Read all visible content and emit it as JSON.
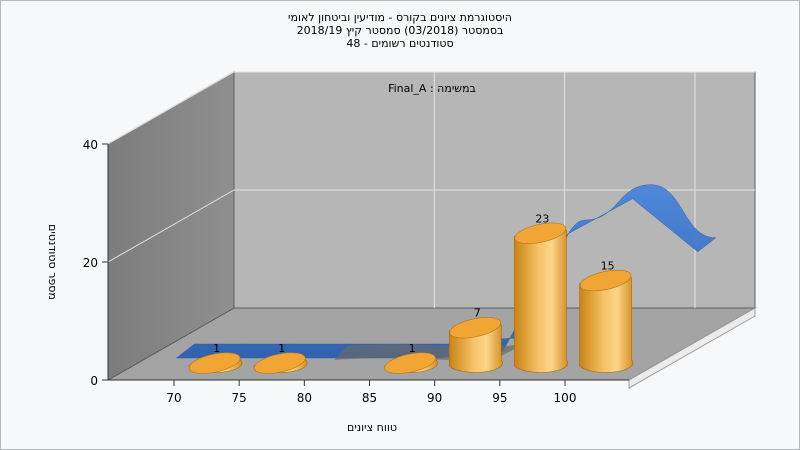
{
  "chart_data": {
    "type": "bar",
    "title": [
      "היסטוגרמת ציונים בקורס - מודיעין וביטחון לאומי",
      "בסמסטר  (03/2018)  סמסטר קיץ 2018/19",
      "סטודנטים רשומים - 48"
    ],
    "annotation": "במשימה : Final_A",
    "xlabel": "טווח ציונים",
    "ylabel": "מספר סטודנטים",
    "x_ticks": [
      "70",
      "75",
      "80",
      "85",
      "90",
      "95",
      "100"
    ],
    "y_ticks": [
      "0",
      "20",
      "40"
    ],
    "ylim": [
      0,
      40
    ],
    "grid": true,
    "series": [
      {
        "kind": "cylinder-bars",
        "color": "#f2b048",
        "bars": [
          {
            "x": 72.5,
            "value": 1,
            "label": "1"
          },
          {
            "x": 77.5,
            "value": 1,
            "label": "1"
          },
          {
            "x": 82.5,
            "value": 0,
            "label": ""
          },
          {
            "x": 87.5,
            "value": 1,
            "label": "1"
          },
          {
            "x": 92.5,
            "value": 7,
            "label": "7"
          },
          {
            "x": 97.5,
            "value": 23,
            "label": "23"
          },
          {
            "x": 102.5,
            "value": 15,
            "label": "15"
          }
        ]
      },
      {
        "kind": "ribbon",
        "color": "#3a6fc4",
        "points": [
          {
            "x": 67.5,
            "value": 0
          },
          {
            "x": 72.5,
            "value": 0
          },
          {
            "x": 77.5,
            "value": 0
          },
          {
            "x": 82.5,
            "value": 0
          },
          {
            "x": 87.5,
            "value": 0
          },
          {
            "x": 92.5,
            "value": 1
          },
          {
            "x": 97.5,
            "value": 21
          },
          {
            "x": 102.5,
            "value": 27
          },
          {
            "x": 107.5,
            "value": 18
          }
        ]
      }
    ]
  }
}
